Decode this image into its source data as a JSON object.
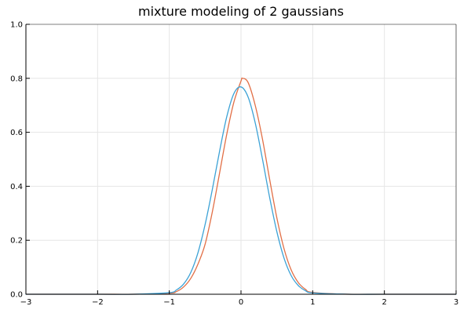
{
  "chart_data": {
    "type": "line",
    "title": "mixture modeling of 2 gaussians",
    "xlabel": "",
    "ylabel": "",
    "xlim": [
      -3,
      3
    ],
    "ylim": [
      0,
      1
    ],
    "x_ticks": [
      -3,
      -2,
      -1,
      0,
      1,
      2,
      3
    ],
    "x_tick_labels": [
      "−3",
      "−2",
      "−1",
      "0",
      "1",
      "2",
      "3"
    ],
    "y_ticks": [
      0,
      0.2,
      0.4,
      0.6,
      0.8,
      1.0
    ],
    "y_tick_labels": [
      "0.0",
      "0.2",
      "0.4",
      "0.6",
      "0.8",
      "1.0"
    ],
    "grid": true,
    "legend": "none",
    "series": [
      {
        "color": "#e26f46",
        "x": [
          -3,
          -2,
          -1.5,
          -1,
          -0.9,
          -0.8,
          -0.7,
          -0.6,
          -0.5,
          -0.4,
          -0.3,
          -0.2,
          -0.1,
          0,
          0.02,
          0.1,
          0.2,
          0.3,
          0.4,
          0.5,
          0.6,
          0.7,
          0.8,
          0.9,
          1,
          1.5,
          2,
          3
        ],
        "values": [
          0,
          0,
          0,
          0.004,
          0.01,
          0.027,
          0.059,
          0.112,
          0.186,
          0.305,
          0.447,
          0.591,
          0.711,
          0.79,
          0.8,
          0.784,
          0.698,
          0.574,
          0.425,
          0.283,
          0.169,
          0.09,
          0.043,
          0.018,
          0.007,
          0,
          0,
          0
        ]
      },
      {
        "color": "#3ca2d6",
        "x": [
          -3,
          -2,
          -1.5,
          -1,
          -0.9,
          -0.8,
          -0.7,
          -0.6,
          -0.5,
          -0.4,
          -0.3,
          -0.2,
          -0.1,
          0,
          0.1,
          0.2,
          0.3,
          0.4,
          0.5,
          0.6,
          0.7,
          0.8,
          0.9,
          1,
          1.5,
          2,
          3
        ],
        "values": [
          0,
          0,
          0,
          0.006,
          0.016,
          0.038,
          0.081,
          0.154,
          0.259,
          0.388,
          0.528,
          0.656,
          0.743,
          0.768,
          0.73,
          0.633,
          0.5,
          0.358,
          0.232,
          0.134,
          0.069,
          0.032,
          0.013,
          0.005,
          0,
          0,
          0
        ]
      }
    ]
  }
}
